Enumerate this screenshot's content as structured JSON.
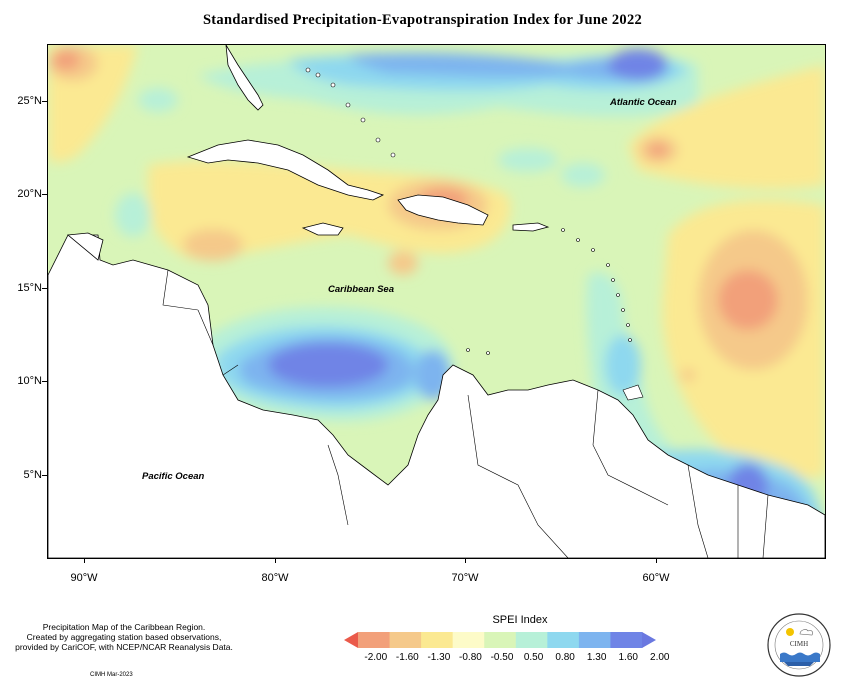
{
  "title": "Standardised Precipitation-Evapotranspiration Index for June 2022",
  "y_ticks": [
    "25°N",
    "20°N",
    "15°N",
    "10°N",
    "5°N"
  ],
  "x_ticks": [
    "90°W",
    "80°W",
    "70°W",
    "60°W"
  ],
  "labels": {
    "atlantic": "Atlantic Ocean",
    "caribbean": "Caribbean Sea",
    "pacific": "Pacific Ocean"
  },
  "note": {
    "line1": "Precipitation Map of the Caribbean Region.",
    "line2": "Created by aggregating station based observations,",
    "line3": "provided by CariCOF, with NCEP/NCAR Reanalysis Data."
  },
  "credit": "CIMH Mar-2023",
  "legend": {
    "title": "SPEI Index",
    "ticks": [
      "-2.00",
      "-1.60",
      "-1.30",
      "-0.80",
      "-0.50",
      "0.50",
      "0.80",
      "1.30",
      "1.60",
      "2.00"
    ],
    "colors": [
      "#ea5a4a",
      "#f2a07a",
      "#f5c98a",
      "#fbe992",
      "#fdfbc8",
      "#d9f5b8",
      "#b7f0d8",
      "#8ed8ef",
      "#7db4ef",
      "#6f84e6",
      "#6a78e0"
    ]
  },
  "logo": {
    "text": "CIMH"
  },
  "colors": {
    "neutral": "#d9f5b8",
    "dry_mild": "#fbe992",
    "dry_moderate": "#f5c98a",
    "dry_severe": "#f2a07a",
    "wet_mild": "#b7f0d8",
    "wet_moderate": "#8ed8ef",
    "wet_severe": "#7db4ef",
    "wet_extreme": "#6f84e6"
  }
}
